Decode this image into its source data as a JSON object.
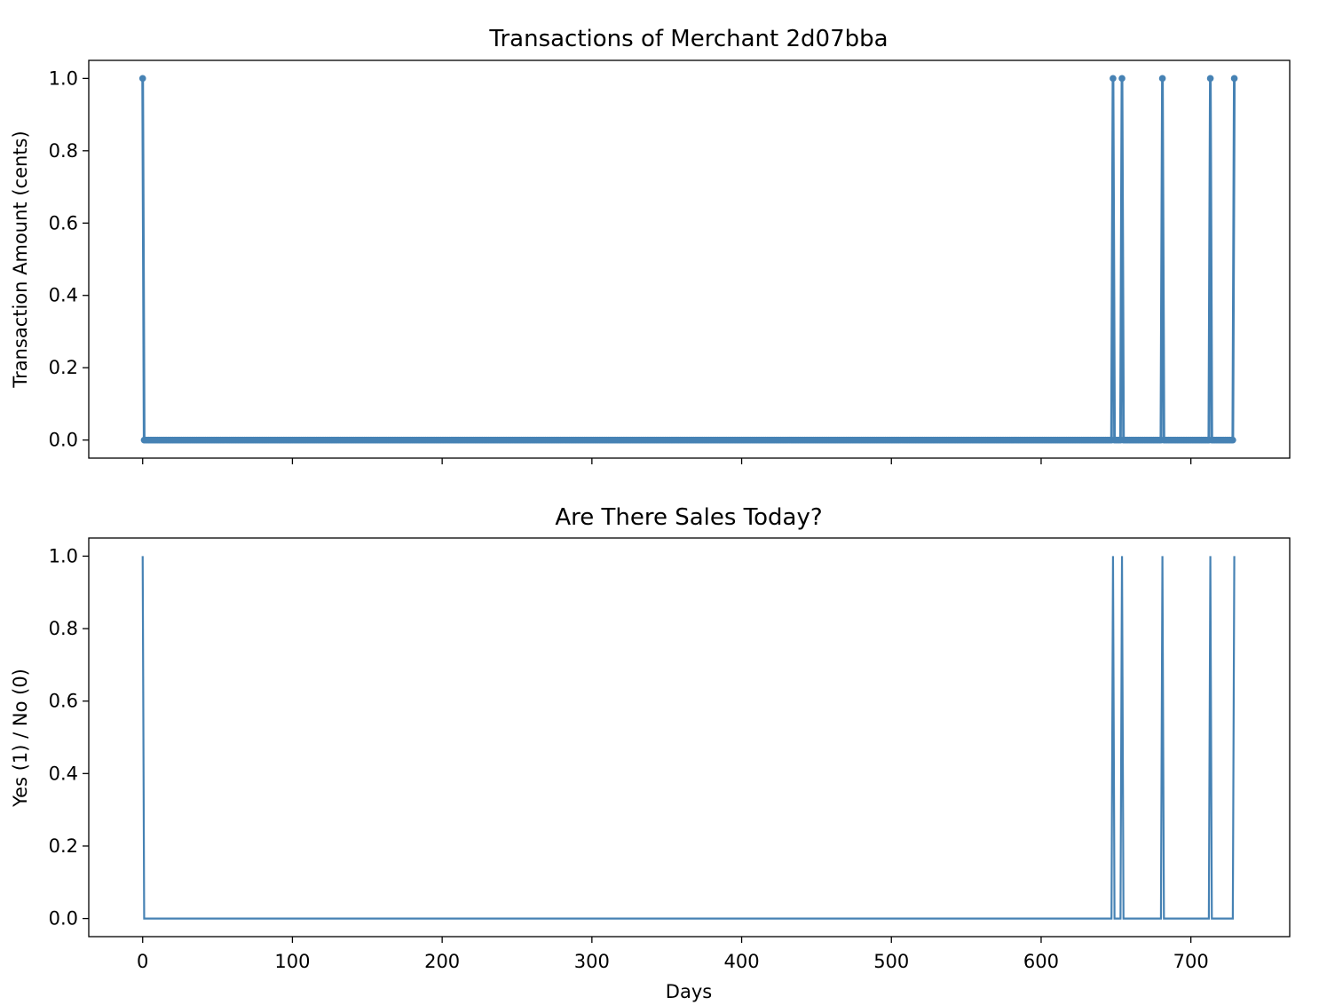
{
  "chart_data": [
    {
      "type": "line",
      "title": "Transactions of Merchant 2d07bba",
      "xlabel": "",
      "ylabel": "Transaction Amount (cents)",
      "markers": true,
      "color": "#4682b4",
      "xlim": [
        -36,
        766
      ],
      "ylim": [
        -0.05,
        1.05
      ],
      "xticks": [
        0,
        100,
        200,
        300,
        400,
        500,
        600,
        700
      ],
      "xtick_labels": [
        "",
        "",
        "",
        "",
        "",
        "",
        "",
        ""
      ],
      "yticks": [
        0.0,
        0.2,
        0.4,
        0.6,
        0.8,
        1.0
      ],
      "ytick_labels": [
        "0.0",
        "0.2",
        "0.4",
        "0.6",
        "0.8",
        "1.0"
      ],
      "x_range": [
        0,
        728
      ],
      "sale_days": [
        0,
        648,
        654,
        681,
        713,
        729
      ],
      "default_value": 0,
      "sale_value": 1
    },
    {
      "type": "line",
      "title": "Are There Sales Today?",
      "xlabel": "Days",
      "ylabel": "Yes (1) / No (0)",
      "markers": false,
      "color": "#4682b4",
      "xlim": [
        -36,
        766
      ],
      "ylim": [
        -0.05,
        1.05
      ],
      "xticks": [
        0,
        100,
        200,
        300,
        400,
        500,
        600,
        700
      ],
      "xtick_labels": [
        "0",
        "100",
        "200",
        "300",
        "400",
        "500",
        "600",
        "700"
      ],
      "yticks": [
        0.0,
        0.2,
        0.4,
        0.6,
        0.8,
        1.0
      ],
      "ytick_labels": [
        "0.0",
        "0.2",
        "0.4",
        "0.6",
        "0.8",
        "1.0"
      ],
      "x_range": [
        0,
        728
      ],
      "sale_days": [
        0,
        648,
        654,
        681,
        713,
        729
      ],
      "default_value": 0,
      "sale_value": 1
    }
  ]
}
